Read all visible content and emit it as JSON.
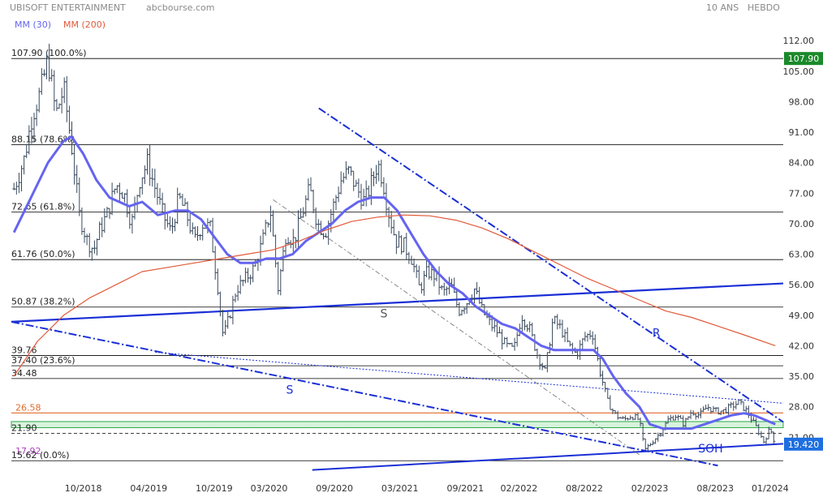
{
  "header": {
    "title": "UBISOFT ENTERTAINMENT",
    "source": "abcbourse.com",
    "period": "10 ANS",
    "frequency": "HEBDO",
    "legend_ma30": "MM (30)",
    "legend_ma200": "MM (200)"
  },
  "colors": {
    "background": "#ffffff",
    "price_bar": "#3a4a5e",
    "ma30": "#6464f0",
    "ma200": "#e05a3a",
    "annotation": "#1a2fd6",
    "fib_line": "#000000",
    "orange_line": "#e06a2a",
    "green_band": "#2aa84a",
    "last_price_bg": "#1e6fe0",
    "high_bg": "#1a8a2a"
  },
  "chart_data": {
    "type": "ohlc",
    "title": "UBISOFT ENTERTAINMENT",
    "ylim": [
      12.5,
      115
    ],
    "y_ticks": [
      112,
      105,
      98,
      91,
      84,
      77,
      70,
      63,
      56,
      49,
      42,
      35,
      28,
      21
    ],
    "y_tick_labels": [
      "112.00",
      "105.00",
      "98.00",
      "91.00",
      "84.00",
      "77.00",
      "70.00",
      "63.00",
      "56.00",
      "49.00",
      "42.00",
      "35.00",
      "28.00",
      "21.00"
    ],
    "x_ticks": [
      "10/2018",
      "04/2019",
      "10/2019",
      "03/2020",
      "09/2020",
      "03/2021",
      "09/2021",
      "02/2022",
      "08/2022",
      "02/2023",
      "08/2023",
      "01/2024"
    ],
    "x_tick_values": [
      2018.75,
      2019.25,
      2019.75,
      2020.17,
      2020.67,
      2021.17,
      2021.67,
      2022.08,
      2022.58,
      2023.08,
      2023.58,
      2024.0
    ],
    "x_range": [
      2018.2,
      2024.1
    ],
    "last_price_label": "19.420",
    "last_price": 19.42,
    "high_label": "107.90",
    "high_value": 107.9,
    "price_anchors": [
      [
        2018.22,
        78
      ],
      [
        2018.3,
        85
      ],
      [
        2018.36,
        95
      ],
      [
        2018.42,
        100
      ],
      [
        2018.48,
        107.9
      ],
      [
        2018.54,
        95
      ],
      [
        2018.6,
        101
      ],
      [
        2018.66,
        88
      ],
      [
        2018.72,
        72
      ],
      [
        2018.78,
        66
      ],
      [
        2018.83,
        64
      ],
      [
        2018.88,
        69
      ],
      [
        2018.93,
        72
      ],
      [
        2019.0,
        79
      ],
      [
        2019.06,
        77
      ],
      [
        2019.12,
        70
      ],
      [
        2019.18,
        80
      ],
      [
        2019.24,
        84
      ],
      [
        2019.3,
        78
      ],
      [
        2019.36,
        72
      ],
      [
        2019.42,
        68
      ],
      [
        2019.48,
        76
      ],
      [
        2019.54,
        72
      ],
      [
        2019.6,
        66
      ],
      [
        2019.66,
        70
      ],
      [
        2019.72,
        69
      ],
      [
        2019.78,
        55
      ],
      [
        2019.82,
        44
      ],
      [
        2019.86,
        48
      ],
      [
        2019.92,
        55
      ],
      [
        2019.98,
        57
      ],
      [
        2020.06,
        60
      ],
      [
        2020.12,
        66
      ],
      [
        2020.18,
        73
      ],
      [
        2020.24,
        55
      ],
      [
        2020.3,
        68
      ],
      [
        2020.36,
        66
      ],
      [
        2020.42,
        72
      ],
      [
        2020.48,
        78
      ],
      [
        2020.54,
        70
      ],
      [
        2020.6,
        68
      ],
      [
        2020.66,
        74
      ],
      [
        2020.72,
        80
      ],
      [
        2020.78,
        82
      ],
      [
        2020.84,
        78
      ],
      [
        2020.9,
        75
      ],
      [
        2020.96,
        80
      ],
      [
        2021.0,
        84
      ],
      [
        2021.04,
        80
      ],
      [
        2021.08,
        73
      ],
      [
        2021.14,
        66
      ],
      [
        2021.2,
        65
      ],
      [
        2021.26,
        62
      ],
      [
        2021.32,
        55
      ],
      [
        2021.38,
        59
      ],
      [
        2021.44,
        58
      ],
      [
        2021.5,
        54
      ],
      [
        2021.56,
        56
      ],
      [
        2021.62,
        50
      ],
      [
        2021.68,
        52
      ],
      [
        2021.74,
        55
      ],
      [
        2021.8,
        50
      ],
      [
        2021.86,
        47
      ],
      [
        2021.92,
        45
      ],
      [
        2021.98,
        42
      ],
      [
        2022.04,
        41
      ],
      [
        2022.1,
        49
      ],
      [
        2022.16,
        46
      ],
      [
        2022.22,
        40
      ],
      [
        2022.28,
        36
      ],
      [
        2022.34,
        48
      ],
      [
        2022.4,
        46
      ],
      [
        2022.46,
        42
      ],
      [
        2022.52,
        40
      ],
      [
        2022.58,
        44
      ],
      [
        2022.64,
        45
      ],
      [
        2022.7,
        36
      ],
      [
        2022.76,
        29
      ],
      [
        2022.82,
        26
      ],
      [
        2022.88,
        25
      ],
      [
        2022.94,
        26
      ],
      [
        2023.0,
        25
      ],
      [
        2023.04,
        18
      ],
      [
        2023.1,
        20
      ],
      [
        2023.16,
        22
      ],
      [
        2023.22,
        25
      ],
      [
        2023.28,
        26
      ],
      [
        2023.34,
        24
      ],
      [
        2023.4,
        27
      ],
      [
        2023.46,
        26
      ],
      [
        2023.52,
        28
      ],
      [
        2023.58,
        27
      ],
      [
        2023.64,
        27
      ],
      [
        2023.7,
        28
      ],
      [
        2023.76,
        29
      ],
      [
        2023.82,
        27
      ],
      [
        2023.86,
        25
      ],
      [
        2023.9,
        23
      ],
      [
        2023.95,
        20
      ],
      [
        2024.0,
        23
      ],
      [
        2024.04,
        19.42
      ]
    ],
    "series": [
      {
        "name": "MM (30)",
        "points": [
          [
            2018.22,
            68
          ],
          [
            2018.35,
            76
          ],
          [
            2018.48,
            84
          ],
          [
            2018.6,
            89
          ],
          [
            2018.66,
            90
          ],
          [
            2018.75,
            86
          ],
          [
            2018.85,
            80
          ],
          [
            2018.95,
            76
          ],
          [
            2019.1,
            74
          ],
          [
            2019.2,
            75
          ],
          [
            2019.32,
            72
          ],
          [
            2019.45,
            73
          ],
          [
            2019.55,
            73
          ],
          [
            2019.65,
            71
          ],
          [
            2019.75,
            67
          ],
          [
            2019.85,
            63
          ],
          [
            2019.95,
            61
          ],
          [
            2020.05,
            61
          ],
          [
            2020.15,
            62
          ],
          [
            2020.25,
            62
          ],
          [
            2020.35,
            63
          ],
          [
            2020.45,
            66
          ],
          [
            2020.55,
            68
          ],
          [
            2020.65,
            70
          ],
          [
            2020.75,
            73
          ],
          [
            2020.85,
            75
          ],
          [
            2020.95,
            76
          ],
          [
            2021.05,
            76
          ],
          [
            2021.15,
            73
          ],
          [
            2021.25,
            68
          ],
          [
            2021.35,
            63
          ],
          [
            2021.45,
            59
          ],
          [
            2021.55,
            56
          ],
          [
            2021.65,
            54
          ],
          [
            2021.75,
            51
          ],
          [
            2021.85,
            49
          ],
          [
            2021.95,
            47
          ],
          [
            2022.05,
            46
          ],
          [
            2022.15,
            44
          ],
          [
            2022.25,
            42
          ],
          [
            2022.35,
            41
          ],
          [
            2022.45,
            41
          ],
          [
            2022.55,
            41
          ],
          [
            2022.65,
            41
          ],
          [
            2022.72,
            39
          ],
          [
            2022.8,
            35
          ],
          [
            2022.9,
            31
          ],
          [
            2023.0,
            28
          ],
          [
            2023.08,
            24
          ],
          [
            2023.18,
            23
          ],
          [
            2023.3,
            23
          ],
          [
            2023.4,
            23
          ],
          [
            2023.5,
            24
          ],
          [
            2023.6,
            25
          ],
          [
            2023.7,
            26
          ],
          [
            2023.8,
            26.5
          ],
          [
            2023.88,
            26
          ],
          [
            2023.96,
            25
          ],
          [
            2024.04,
            24
          ]
        ]
      },
      {
        "name": "MM (200)",
        "points": [
          [
            2018.22,
            35
          ],
          [
            2018.4,
            43
          ],
          [
            2018.6,
            49
          ],
          [
            2018.8,
            53
          ],
          [
            2019.0,
            56
          ],
          [
            2019.2,
            59
          ],
          [
            2019.4,
            60
          ],
          [
            2019.6,
            61
          ],
          [
            2019.8,
            62
          ],
          [
            2020.0,
            63
          ],
          [
            2020.2,
            64
          ],
          [
            2020.4,
            66
          ],
          [
            2020.6,
            68.5
          ],
          [
            2020.8,
            70.5
          ],
          [
            2021.0,
            71.5
          ],
          [
            2021.2,
            72
          ],
          [
            2021.4,
            71.8
          ],
          [
            2021.6,
            70.8
          ],
          [
            2021.8,
            69
          ],
          [
            2022.0,
            66.5
          ],
          [
            2022.2,
            63.5
          ],
          [
            2022.4,
            60.5
          ],
          [
            2022.6,
            57.5
          ],
          [
            2022.8,
            55
          ],
          [
            2023.0,
            52.5
          ],
          [
            2023.2,
            50
          ],
          [
            2023.4,
            48.5
          ],
          [
            2023.6,
            46.5
          ],
          [
            2023.8,
            44.5
          ],
          [
            2024.04,
            42
          ]
        ]
      }
    ],
    "fib_levels": [
      {
        "label": "107.90  (100.0%)",
        "value": 107.9
      },
      {
        "label": "88.15  (78.6%)",
        "value": 88.15
      },
      {
        "label": "72.65  (61.8%)",
        "value": 72.65
      },
      {
        "label": "61.76  (50.0%)",
        "value": 61.76
      },
      {
        "label": "50.87  (38.2%)",
        "value": 50.87
      },
      {
        "label": "39.76",
        "value": 39.76
      },
      {
        "label": "37.40  (23.6%)",
        "value": 37.4
      },
      {
        "label": "34.48",
        "value": 34.48
      },
      {
        "label": "21.90",
        "value": 21.9
      },
      {
        "label": "15.62  (0.0%)",
        "value": 15.62
      }
    ],
    "orange_level": {
      "label": "26.58",
      "value": 26.58
    },
    "purple_level": {
      "label": "17.92",
      "value": 17.92
    },
    "annotations": [
      {
        "label": "S",
        "x": 2021.02,
        "y": 48.5
      },
      {
        "label": "S",
        "x": 2020.3,
        "y": 31
      },
      {
        "label": "R",
        "x": 2023.1,
        "y": 44
      },
      {
        "label": "SOH",
        "x": 2023.45,
        "y": 17.5
      }
    ]
  }
}
